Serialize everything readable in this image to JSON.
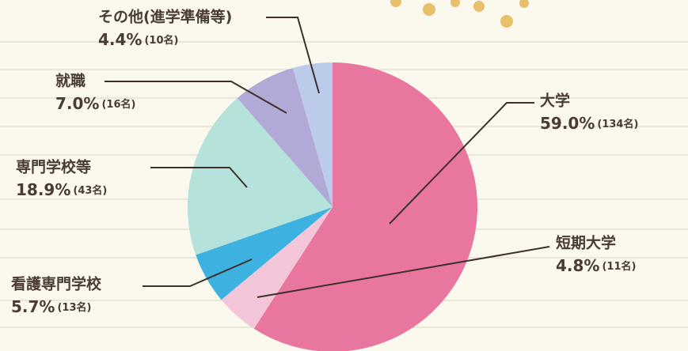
{
  "chart_data": {
    "type": "pie",
    "categories": [
      "大学",
      "短期大学",
      "看護専門学校",
      "専門学校等",
      "就職",
      "その他(進学準備等)"
    ],
    "values": [
      59.0,
      4.8,
      5.7,
      18.9,
      7.0,
      4.4
    ],
    "value_labels": [
      "59.0%",
      "4.8%",
      "5.7%",
      "18.9%",
      "7.0%",
      "4.4%"
    ],
    "counts": [
      134,
      11,
      13,
      43,
      16,
      10
    ],
    "count_labels": [
      "(134名)",
      "(11名)",
      "(13名)",
      "(43名)",
      "(16名)",
      "(10名)"
    ],
    "colors": [
      "#e9769f",
      "#f3c7d9",
      "#3db2e1",
      "#b6e2dc",
      "#b2aad6",
      "#bccbea"
    ]
  }
}
